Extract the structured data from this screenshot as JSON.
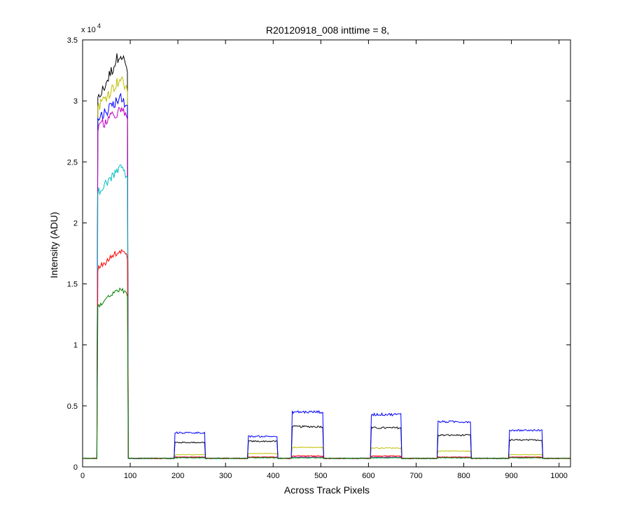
{
  "chart_data": {
    "type": "line",
    "title": "R20120918_008 inttime = 8,",
    "xlabel": "Across Track Pixels",
    "ylabel": "Intensity (ADU)",
    "xlim": [
      0,
      1024
    ],
    "ylim": [
      0,
      35000
    ],
    "y_exponent_label": "x 10",
    "y_exponent_power": "4",
    "xticks": [
      0,
      100,
      200,
      300,
      400,
      500,
      600,
      700,
      800,
      900,
      1000
    ],
    "yticks": [
      0,
      5000,
      10000,
      15000,
      20000,
      25000,
      30000,
      35000
    ],
    "xtick_labels": [
      "0",
      "100",
      "200",
      "300",
      "400",
      "500",
      "600",
      "700",
      "800",
      "900",
      "1000"
    ],
    "ytick_labels": [
      "0",
      "0.5",
      "1",
      "1.5",
      "2",
      "2.5",
      "3",
      "3.5"
    ],
    "grid": false,
    "legend": "none",
    "baseline": 700,
    "bands": [
      {
        "start": 32,
        "end": 94
      },
      {
        "start": 194,
        "end": 256
      },
      {
        "start": 348,
        "end": 408
      },
      {
        "start": 440,
        "end": 505
      },
      {
        "start": 605,
        "end": 668
      },
      {
        "start": 745,
        "end": 815
      },
      {
        "start": 895,
        "end": 965
      }
    ],
    "series": [
      {
        "color": "#000000",
        "first_band": [
          30000,
          34000
        ],
        "levels": [
          2000,
          2100,
          3300,
          3200,
          2600,
          2200
        ]
      },
      {
        "color": "#bfbf00",
        "first_band": [
          29500,
          31800
        ],
        "levels": [
          1000,
          1100,
          1600,
          1550,
          1300,
          1000
        ]
      },
      {
        "color": "#0000ff",
        "first_band": [
          28500,
          30300
        ],
        "levels": [
          2800,
          2500,
          4500,
          4300,
          3700,
          3000
        ]
      },
      {
        "color": "#bf00bf",
        "first_band": [
          27800,
          29200
        ],
        "levels": [
          800,
          800,
          800,
          800,
          800,
          800
        ]
      },
      {
        "color": "#00bfbf",
        "first_band": [
          22500,
          24500
        ],
        "levels": [
          750,
          750,
          750,
          750,
          750,
          750
        ]
      },
      {
        "color": "#ff0000",
        "first_band": [
          16200,
          17800
        ],
        "levels": [
          800,
          800,
          900,
          900,
          800,
          800
        ]
      },
      {
        "color": "#008000",
        "first_band": [
          13200,
          14600
        ],
        "levels": [
          750,
          750,
          750,
          750,
          750,
          750
        ]
      }
    ]
  }
}
